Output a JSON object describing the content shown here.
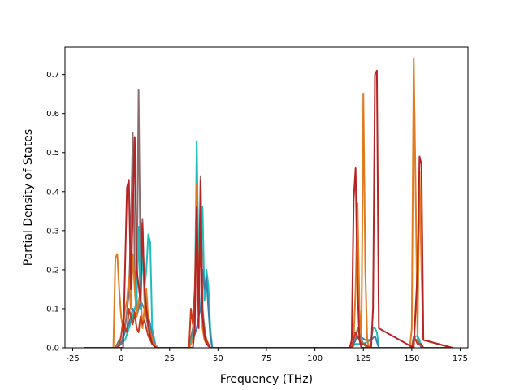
{
  "chart_data": {
    "type": "line",
    "title": "",
    "xlabel": "Frequency (THz)",
    "ylabel": "Partial Density of States",
    "xlim": [
      -29,
      179
    ],
    "ylim": [
      0,
      0.77
    ],
    "xticks": [
      -25,
      0,
      25,
      50,
      75,
      100,
      125,
      150,
      175
    ],
    "yticks": [
      0.0,
      0.1,
      0.2,
      0.3,
      0.4,
      0.5,
      0.6,
      0.7
    ],
    "grid": false,
    "legend": "none",
    "series": [
      {
        "color": "#8c6d6d",
        "x": [
          -19,
          -3,
          -1,
          0,
          2,
          4,
          5,
          6,
          7,
          8,
          9,
          10,
          11,
          12,
          13,
          14,
          15,
          17,
          19,
          35,
          37,
          38,
          39,
          40,
          41,
          42,
          43,
          44,
          46,
          119,
          121,
          122,
          124,
          125,
          127,
          150,
          151,
          152,
          153,
          154,
          155,
          171
        ],
        "y": [
          0,
          0,
          0.02,
          0.01,
          0.05,
          0.14,
          0.3,
          0.55,
          0.2,
          0.1,
          0.66,
          0.2,
          0.33,
          0.12,
          0.08,
          0.05,
          0.03,
          0.01,
          0,
          0,
          0.05,
          0.1,
          0.42,
          0.12,
          0.44,
          0.1,
          0.05,
          0.02,
          0,
          0,
          0.02,
          0.05,
          0.02,
          0.01,
          0,
          0,
          0.03,
          0.02,
          0.02,
          0.01,
          0,
          0
        ]
      },
      {
        "color": "#1fbdbd",
        "x": [
          -19,
          -2,
          0,
          2,
          4,
          6,
          8,
          9,
          10,
          11,
          12,
          13,
          14,
          15,
          16,
          18,
          35,
          37,
          38,
          39,
          40,
          41,
          42,
          43,
          44,
          45,
          46,
          47,
          119,
          121,
          125,
          129,
          130,
          131,
          132,
          133,
          150,
          151,
          152,
          153,
          154,
          155,
          171
        ],
        "y": [
          0,
          0,
          0.01,
          0.02,
          0.05,
          0.08,
          0.12,
          0.31,
          0.1,
          0.25,
          0.15,
          0.2,
          0.29,
          0.27,
          0.05,
          0,
          0,
          0.03,
          0.1,
          0.53,
          0.2,
          0.3,
          0.36,
          0.12,
          0.2,
          0.16,
          0.05,
          0,
          0,
          0.01,
          0.01,
          0.02,
          0.05,
          0.05,
          0.04,
          0,
          0,
          0.02,
          0.03,
          0.03,
          0.02,
          0,
          0
        ]
      },
      {
        "color": "#3d7dab",
        "x": [
          -19,
          -2,
          0,
          2,
          4,
          6,
          8,
          10,
          12,
          14,
          15,
          16,
          18,
          35,
          37,
          39,
          40,
          41,
          42,
          43,
          44,
          45,
          46,
          47,
          119,
          121,
          123,
          126,
          129,
          131,
          133,
          150,
          151,
          152,
          153,
          154,
          155,
          171
        ],
        "y": [
          0,
          0,
          0.01,
          0.04,
          0.06,
          0.1,
          0.08,
          0.12,
          0.1,
          0.08,
          0.06,
          0.03,
          0,
          0,
          0.02,
          0.05,
          0.08,
          0.1,
          0.2,
          0.15,
          0.18,
          0.1,
          0.03,
          0,
          0,
          0.02,
          0.03,
          0.02,
          0.02,
          0.03,
          0,
          0,
          0.02,
          0.02,
          0.01,
          0.01,
          0,
          0
        ]
      },
      {
        "color": "#e07b1f",
        "x": [
          -19,
          -4,
          -3,
          -2,
          -1,
          0,
          1,
          2,
          3,
          4,
          5,
          6,
          7,
          8,
          9,
          10,
          11,
          12,
          13,
          14,
          15,
          17,
          19,
          35,
          37,
          38,
          39,
          40,
          41,
          42,
          43,
          44,
          46,
          118,
          120,
          121,
          122,
          123,
          124,
          125,
          126,
          127,
          128,
          149,
          150,
          151,
          152,
          153,
          154,
          155,
          156,
          171
        ],
        "y": [
          0,
          0,
          0.23,
          0.24,
          0.15,
          0.08,
          0.05,
          0.1,
          0.12,
          0.18,
          0.1,
          0.24,
          0.15,
          0.08,
          0.12,
          0.14,
          0.05,
          0.1,
          0.15,
          0.07,
          0.04,
          0.01,
          0,
          0,
          0.02,
          0.08,
          0.42,
          0.1,
          0.35,
          0.05,
          0.02,
          0.01,
          0,
          0,
          0.02,
          0.15,
          0.37,
          0.1,
          0.02,
          0.65,
          0.2,
          0.02,
          0,
          0,
          0.05,
          0.74,
          0.4,
          0.02,
          0.45,
          0.2,
          0.02,
          0
        ]
      },
      {
        "color": "#c83b1a",
        "x": [
          -19,
          -2,
          -1,
          0,
          1,
          2,
          3,
          4,
          5,
          6,
          7,
          8,
          9,
          10,
          11,
          12,
          13,
          14,
          16,
          18,
          35,
          36,
          37,
          38,
          39,
          40,
          41,
          42,
          43,
          44,
          46,
          119,
          120,
          121,
          122,
          123,
          124,
          126,
          128,
          150,
          151,
          152,
          153,
          154,
          155,
          156,
          171
        ],
        "y": [
          0,
          0,
          0.01,
          0.03,
          0.07,
          0.05,
          0.04,
          0.1,
          0.08,
          0.06,
          0.09,
          0.05,
          0.04,
          0.08,
          0.06,
          0.07,
          0.05,
          0.03,
          0.01,
          0,
          0,
          0.1,
          0.06,
          0.15,
          0.36,
          0.1,
          0.3,
          0.08,
          0.04,
          0.02,
          0,
          0,
          0.02,
          0.04,
          0.03,
          0.02,
          0.01,
          0.01,
          0,
          0,
          0.02,
          0.02,
          0.01,
          0.01,
          0.01,
          0,
          0
        ]
      },
      {
        "color": "#b52525",
        "x": [
          -19,
          1,
          2,
          3,
          4,
          5,
          6,
          7,
          8,
          9,
          10,
          11,
          12,
          13,
          14,
          15,
          16,
          18,
          37,
          38,
          39,
          40,
          41,
          42,
          43,
          44,
          46,
          118,
          119,
          120,
          121,
          122,
          123,
          124,
          129,
          130,
          131,
          132,
          133,
          151,
          152,
          153,
          154,
          155,
          156,
          171
        ],
        "y": [
          0,
          0,
          0.2,
          0.41,
          0.43,
          0.15,
          0.35,
          0.54,
          0.2,
          0.16,
          0.12,
          0.32,
          0.15,
          0.1,
          0.06,
          0.03,
          0.01,
          0,
          0,
          0.05,
          0.36,
          0.05,
          0.43,
          0.08,
          0.03,
          0.01,
          0,
          0,
          0.02,
          0.38,
          0.46,
          0.15,
          0.02,
          0,
          0,
          0.1,
          0.7,
          0.71,
          0.05,
          0,
          0.1,
          0.2,
          0.49,
          0.47,
          0.02,
          0
        ]
      }
    ]
  }
}
